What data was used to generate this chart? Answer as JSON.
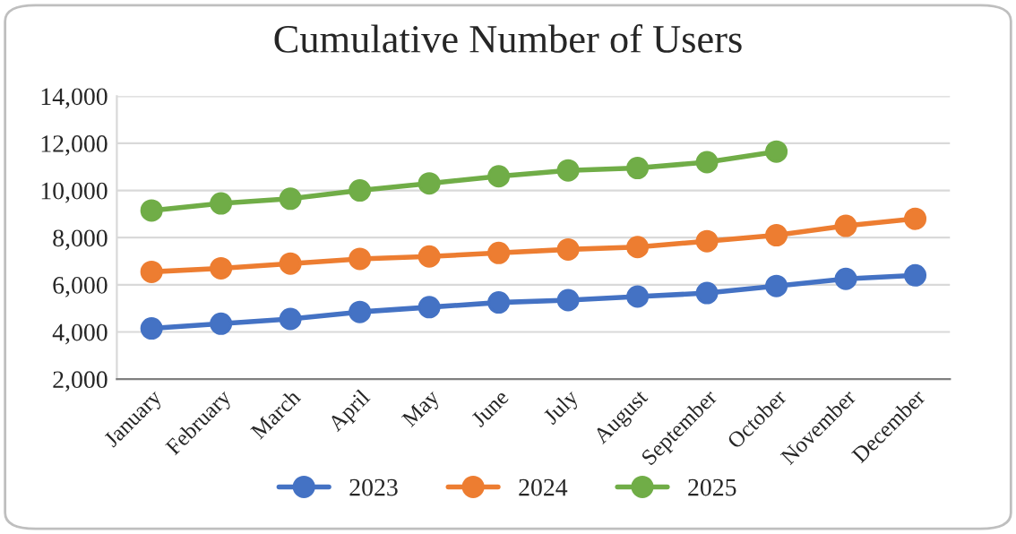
{
  "chart_data": {
    "type": "line",
    "title": "Cumulative Number of Users",
    "categories": [
      "January",
      "February",
      "March",
      "April",
      "May",
      "June",
      "July",
      "August",
      "September",
      "October",
      "November",
      "December"
    ],
    "series": [
      {
        "name": "2023",
        "color": "#4472c4",
        "values": [
          4150,
          4350,
          4550,
          4850,
          5050,
          5250,
          5350,
          5500,
          5650,
          5950,
          6250,
          6400
        ]
      },
      {
        "name": "2024",
        "color": "#ed7d31",
        "values": [
          6550,
          6700,
          6900,
          7100,
          7200,
          7350,
          7500,
          7600,
          7850,
          8100,
          8500,
          8800
        ]
      },
      {
        "name": "2025",
        "color": "#70ad47",
        "values": [
          9150,
          9450,
          9650,
          10000,
          10300,
          10600,
          10850,
          10950,
          11200,
          11650,
          null,
          null
        ]
      }
    ],
    "ylim": [
      2000,
      14000
    ],
    "yticks": [
      {
        "value": 2000,
        "label": "2,000"
      },
      {
        "value": 4000,
        "label": "4,000"
      },
      {
        "value": 6000,
        "label": "6,000"
      },
      {
        "value": 8000,
        "label": "8,000"
      },
      {
        "value": 10000,
        "label": "10,000"
      },
      {
        "value": 12000,
        "label": "12,000"
      },
      {
        "value": 14000,
        "label": "14,000"
      }
    ],
    "grid": "y",
    "legend": "bottom",
    "marker": "circle",
    "line_style": "solid"
  }
}
